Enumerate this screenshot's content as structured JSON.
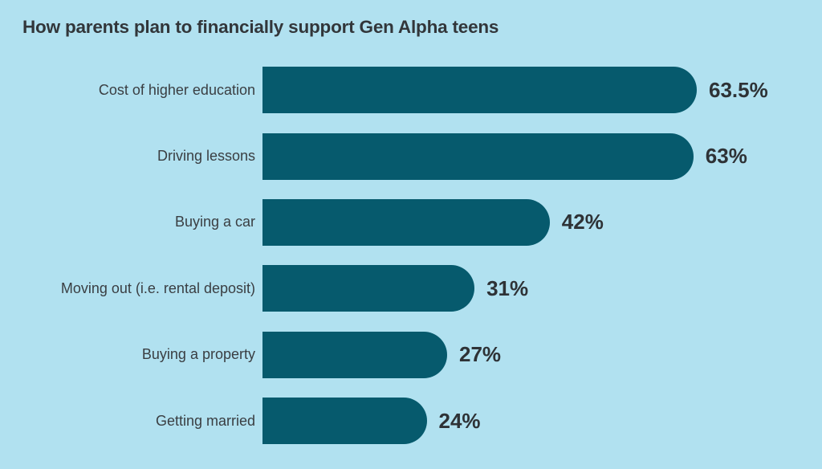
{
  "chart_data": {
    "type": "bar",
    "orientation": "horizontal",
    "title": "How parents plan to financially support Gen Alpha teens",
    "categories": [
      "Cost of higher education",
      "Driving lessons",
      "Buying a car",
      "Moving out (i.e. rental deposit)",
      "Buying a property",
      "Getting married"
    ],
    "values": [
      63.5,
      63,
      42,
      31,
      27,
      24
    ],
    "labels": [
      "63.5%",
      "63%",
      "42%",
      "31%",
      "27%",
      "24%"
    ],
    "xlabel": "",
    "ylabel": "",
    "xlim": [
      0,
      65
    ],
    "grid": false,
    "legend": false,
    "axis_shown": false,
    "colors": {
      "background": "#B1E1F0",
      "bar": "#065A6D",
      "title_text": "#32363A",
      "category_text": "#3A3E42",
      "value_text": "#2E3236"
    }
  }
}
